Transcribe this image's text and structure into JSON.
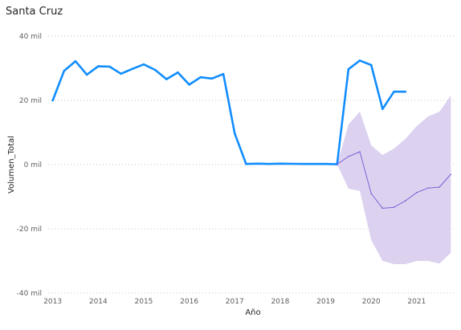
{
  "chart_data": {
    "type": "line",
    "title": "Santa Cruz",
    "xlabel": "Año",
    "ylabel": "Volumen_Total",
    "xlim": [
      2012.9,
      2021.85
    ],
    "ylim": [
      -40000,
      40000
    ],
    "x_ticks": [
      2013,
      2014,
      2015,
      2016,
      2017,
      2018,
      2019,
      2020,
      2021
    ],
    "y_ticks": [
      {
        "value": 40000,
        "label": "40 mil"
      },
      {
        "value": 20000,
        "label": "20 mil"
      },
      {
        "value": 0,
        "label": "0 mil"
      },
      {
        "value": -20000,
        "label": "-20 mil"
      },
      {
        "value": -40000,
        "label": "-40 mil"
      }
    ],
    "grid": "horizontal dotted",
    "series": [
      {
        "kind": "actual",
        "color": "#118DFF",
        "x": [
          2013.0,
          2013.25,
          2013.5,
          2013.75,
          2014.0,
          2014.25,
          2014.5,
          2014.75,
          2015.0,
          2015.25,
          2015.5,
          2015.75,
          2016.0,
          2016.25,
          2016.5,
          2016.75,
          2017.0,
          2017.25,
          2017.5,
          2017.75,
          2018.0,
          2018.25,
          2018.5,
          2018.75,
          2019.0,
          2019.25,
          2019.5,
          2019.75,
          2020.0,
          2020.25,
          2020.5,
          2020.75
        ],
        "y": [
          20000,
          29200,
          32200,
          28000,
          30600,
          30500,
          28300,
          29800,
          31200,
          29500,
          26600,
          28700,
          24900,
          27200,
          26800,
          28200,
          9700,
          200,
          300,
          200,
          300,
          250,
          200,
          200,
          200,
          100,
          29700,
          32400,
          31000,
          17300,
          22700,
          22700
        ]
      },
      {
        "kind": "forecast",
        "color": "#7B61D6",
        "x": [
          2019.25,
          2019.5,
          2019.75,
          2020.0,
          2020.25,
          2020.5,
          2020.75,
          2021.0,
          2021.25,
          2021.5,
          2021.75
        ],
        "y": [
          100,
          2500,
          4000,
          -9000,
          -13600,
          -13300,
          -11300,
          -8700,
          -7300,
          -7000,
          -3000
        ],
        "upper": [
          100,
          12500,
          16500,
          6000,
          3000,
          5000,
          8000,
          12000,
          15000,
          16500,
          21500
        ],
        "lower": [
          100,
          -7500,
          -8200,
          -23500,
          -30000,
          -31000,
          -31000,
          -30000,
          -30000,
          -30800,
          -27500
        ],
        "band_color": "#DCD2F0"
      }
    ]
  }
}
